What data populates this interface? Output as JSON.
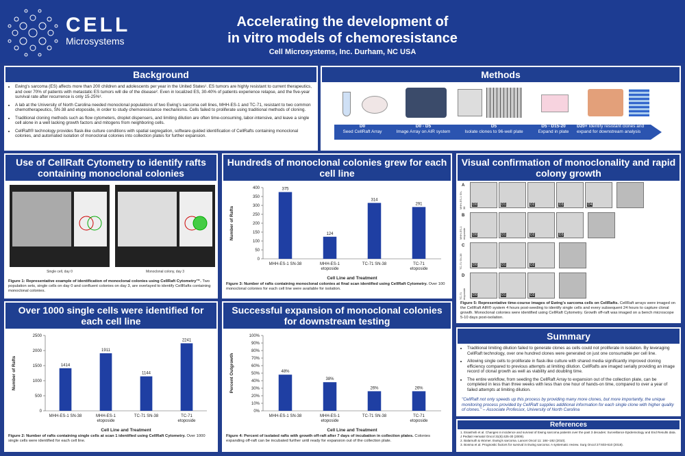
{
  "header": {
    "logo_top": "CELL",
    "logo_bottom": "Microsystems",
    "title_line1": "Accelerating the development of",
    "title_line2": "in vitro models of chemoresistance",
    "subtitle": "Cell Microsystems, Inc. Durham, NC USA"
  },
  "background": {
    "title": "Background",
    "bullets": [
      "Ewing's sarcoma (ES) affects more than 200 children and adolescents per year in the United States¹. ES tumors are highly resistant to current therapeutics, and over 70% of patients with metastatic ES tumors will die of the disease². Even in localized ES, 30-40% of patients experience relapse, and the five-year survival rate after recurrence is only 15-25%³.",
      "A lab at the University of North Carolina needed monoclonal populations of two Ewing's sarcoma cell lines, MHH-ES-1 and TC-71, resistant to two common chemotherapeutics, SN-38 and etoposide, in order to study chemoresistance mechanisms. Cells failed to proliferate using traditional methods of cloning.",
      "Traditional cloning methods such as flow cytometers, droplet dispensers, and limiting dilution are often time-consuming, labor-intensive, and leave a single cell alone in a well lacking growth factors and mitogens from neighboring cells.",
      "CellRaft® technology provides flask-like culture conditions with spatial segregation, software-guided identification of CellRafts containing monoclonal colonies, and automated isolation of monoclonal colonies into collection plates for further expansion."
    ]
  },
  "methods": {
    "title": "Methods",
    "steps": [
      {
        "day": "D0",
        "text": "Seed CellRaft Array"
      },
      {
        "day": "D0 - D5",
        "text": "Image Array on AIR system"
      },
      {
        "day": "D5",
        "text": "Isolate clones to 96-well plate"
      },
      {
        "day": "D5 - D15-20",
        "text": "Expand in plate"
      },
      {
        "day": "D20+",
        "text": "Identify resistant clones and expand for downstream analysis"
      }
    ]
  },
  "cytometry": {
    "title": "Use of CellRaft Cytometry to identify rafts containing monoclonal colonies",
    "img_left_label": "Single cell, day 0",
    "img_right_label": "Monoclonal colony, day 3",
    "caption_bold": "Figure 1: Representative example of identification of monoclonal colonies using CellRaft Cytometry™.",
    "caption": "Two population sets, single cells on day 0 and confluent colonies on day 3, are overlayed to identify CellRafts containing monoclonal colonies."
  },
  "fig3": {
    "title": "Hundreds of monoclonal colonies grew for each cell line",
    "caption_bold": "Figure 3: Number of rafts containing monoclonal colonies at final scan identified using CellRaft Cytometry.",
    "caption": "Over 100 monoclonal colonies for each cell line were available for isolation."
  },
  "fig2": {
    "title": "Over 1000 single cells were identified for each cell line",
    "caption_bold": "Figure 2: Number of rafts containing single cells at scan 1 identified using CellRaft Cytometry.",
    "caption": "Over 1000 single cells were identified for each cell line."
  },
  "fig4": {
    "title": "Successful expansion of monoclonal colonies for downstream testing",
    "caption_bold": "Figure 4: Percent of isolated rafts with growth off-raft after 7 days of incubation in collection plates.",
    "caption": "Colonies expanding off-raft can be incubated further until ready for expansion out of the collection plate."
  },
  "visual": {
    "title": "Visual confirmation of monoclonality and rapid colony growth",
    "rows": [
      {
        "label": "A",
        "line": "MHH-ES-1 SN-38"
      },
      {
        "label": "B",
        "line": "MHH-ES-1 etoposide"
      },
      {
        "label": "C",
        "line": "TC-71 SN-38"
      },
      {
        "label": "D",
        "line": "TC-71 etoposide"
      }
    ],
    "days": [
      "D0",
      "D1",
      "D2",
      "D3",
      "D4"
    ],
    "caption_bold": "Figure 5: Representative time-course images of Ewing's sarcoma cells on CellRafts.",
    "caption": "CellRaft arrays were imaged on the CellRaft AIR® system 4 hours post-seeding to identify single cells and every subsequent 24 hours to capture clonal growth. Monoclonal colonies were identified using CellRaft Cytometry. Growth off-raft was imaged on a bench microscope 5-10 days post-isolation."
  },
  "summary": {
    "title": "Summary",
    "bullets": [
      "Traditional limiting dilution failed to generate clones as cells could not proliferate in isolation. By leveraging CellRaft technology, over one hundred clones were generated on just one consumable per cell line.",
      "Allowing single cells to proliferate in flask-like culture with shared media significantly improved cloning efficiency compared to previous attempts at limiting dilution. CellRafts are imaged serially providing an image record of clonal growth as well as viability and doubling time.",
      "The entire workflow, from seeding the CellRaft Array to expansion out of the collection plate, can be completed in less than three weeks with less than one hour of hands-on time, compared to over a year of failed attempts at limiting dilution."
    ],
    "quote": "\"CellRaft not only speeds up this process by providing many more clones, but more importantly, the unique monitoring process provided by CellRaft supplies additional information for each single clone with higher quality of clones.\" – Associate Professor, University of North Carolina"
  },
  "references": {
    "title": "References",
    "items": [
      "1. Esiashvili et al. Changes in incidence and survival of Ewing sarcoma patients over the past 3 decades: Surveillance Epidemiology and End Results data. J Pediatr Hematol Oncol 31(6):425-30 (2009).",
      "2. Balamuth & Womer. Ewing's sarcoma. Lancet Oncol 11: 184–192 (2010).",
      "3. Bosma et al. Prognostic factors for survival in Ewing sarcoma: A systematic review. Surg Oncol 27:603-610 (2018)."
    ]
  },
  "chart_data": [
    {
      "type": "bar",
      "id": "fig3",
      "categories": [
        "MHH-ES-1 SN-38",
        "MHH-ES-1 etoposide",
        "TC-71 SN-38",
        "TC-71 etoposide"
      ],
      "values": [
        375,
        124,
        314,
        291
      ],
      "xlabel": "Cell Line and Treatment",
      "ylabel": "Number of Rafts",
      "ylim": [
        0,
        400
      ],
      "yticks": [
        0,
        50,
        100,
        150,
        200,
        250,
        300,
        350,
        400
      ],
      "color": "#1f3fa3"
    },
    {
      "type": "bar",
      "id": "fig2",
      "categories": [
        "MHH-ES-1 SN-38",
        "MHH-ES-1 etoposide",
        "TC-71 SN-38",
        "TC-71 etoposide"
      ],
      "values": [
        1414,
        1911,
        1144,
        2241
      ],
      "xlabel": "Cell Line and Treatment",
      "ylabel": "Number of Rafts",
      "ylim": [
        0,
        2500
      ],
      "yticks": [
        0,
        500,
        1000,
        1500,
        2000,
        2500
      ],
      "color": "#1f3fa3"
    },
    {
      "type": "bar",
      "id": "fig4",
      "categories": [
        "MHH-ES-1 SN-38",
        "MHH-ES-1 etoposide",
        "TC-71 SN-38",
        "TC-71 etoposide"
      ],
      "values": [
        48,
        38,
        26,
        26
      ],
      "value_labels": [
        "48%",
        "38%",
        "26%",
        "26%"
      ],
      "xlabel": "Cell Line and Treatment",
      "ylabel": "Percent Outgrowth",
      "ylim": [
        0,
        100
      ],
      "yticks": [
        "0%",
        "10%",
        "20%",
        "30%",
        "40%",
        "50%",
        "60%",
        "70%",
        "80%",
        "90%",
        "100%"
      ],
      "color": "#1f3fa3"
    }
  ]
}
